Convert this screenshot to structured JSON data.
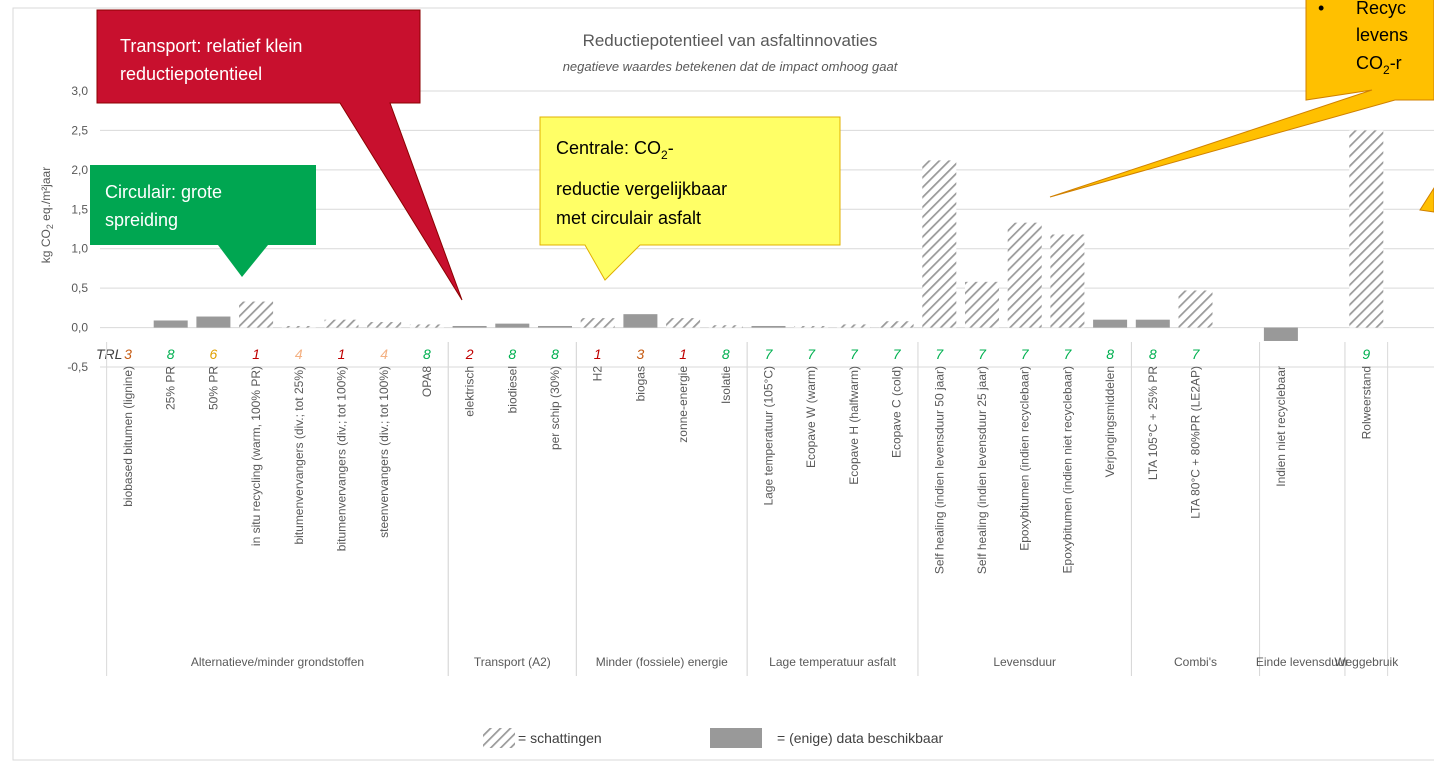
{
  "chart_data": {
    "type": "bar",
    "title": "Reductiepotentieel van asfaltinnovaties",
    "subtitle": "negatieve waardes betekenen dat de impact omhoog gaat",
    "y_label": [
      "kg CO",
      "2",
      " eq./m²jaar"
    ],
    "ylim": [
      -0.5,
      3.0
    ],
    "yticks": [
      {
        "value": -0.5,
        "label": "-0,5"
      },
      {
        "value": 0,
        "label": "0,0"
      },
      {
        "value": 0.5,
        "label": "0,5"
      },
      {
        "value": 1.0,
        "label": "1,0"
      },
      {
        "value": 1.5,
        "label": "1,5"
      },
      {
        "value": 2.0,
        "label": "2,0"
      },
      {
        "value": 2.5,
        "label": "2,5"
      },
      {
        "value": 3.0,
        "label": "3,0"
      }
    ],
    "grid": true,
    "categories": [
      "biobased bitumen (lignine)",
      "25% PR",
      "50% PR",
      "in situ recycling (warm, 100% PR)",
      "bitumenvervangers (div.; tot 25%)",
      "bitumenvervangers (div.; tot 100%)",
      "steenvervangers (div.; tot 100%)",
      "OPA8",
      "elektrisch",
      "biodiesel",
      "per schip (30%)",
      "H2",
      "biogas",
      "zonne-energie",
      "Isolatie",
      "Lage temperatuur (105°C)",
      "Ecopave W (warm)",
      "Ecopave H (halfwarm)",
      "Ecopave C (cold)",
      "Self healing (indien levensduur 50 jaar)",
      "Self healing (indien levensduur 25 jaar)",
      "Epoxybitumen (indien recyclebaar)",
      "Epoxybitumen (indien niet recyclebaar)",
      "Verjongingsmiddelen",
      "LTA 105°C + 25% PR",
      "LTA 80°C + 80%PR (LE2AP)",
      null,
      "Indien niet recyclebaar",
      null,
      "Rolweerstand"
    ],
    "values": [
      0,
      0.09,
      0.14,
      0.33,
      0.02,
      0.1,
      0.07,
      0.04,
      0.02,
      0.05,
      0.02,
      0.12,
      0.17,
      0.12,
      0.03,
      0.02,
      0.02,
      0.04,
      0.08,
      2.12,
      0.58,
      1.33,
      1.18,
      0.1,
      0.1,
      0.47,
      null,
      -0.17,
      null,
      2.5
    ],
    "patterns": [
      "hatched",
      "solid",
      "solid",
      "hatched",
      "hatched",
      "hatched",
      "hatched",
      "hatched",
      "solid",
      "solid",
      "solid",
      "hatched",
      "solid",
      "hatched",
      "hatched",
      "solid",
      "hatched",
      "hatched",
      "hatched",
      "hatched",
      "hatched",
      "hatched",
      "hatched",
      "solid",
      "solid",
      "hatched",
      null,
      "solid",
      null,
      "hatched"
    ],
    "trl_label": "TRL",
    "trl": [
      3,
      8,
      6,
      1,
      4,
      1,
      4,
      8,
      2,
      8,
      8,
      1,
      3,
      1,
      8,
      7,
      7,
      7,
      7,
      7,
      7,
      7,
      7,
      8,
      8,
      7,
      null,
      null,
      null,
      9
    ],
    "trl_colors": {
      "1": "#c00000",
      "2": "#c00000",
      "3": "#c55a11",
      "4": "#f4b183",
      "6": "#e0a000",
      "7": "#00b050",
      "8": "#00b050",
      "9": "#00b050"
    },
    "groups": [
      {
        "name": "Alternatieve/minder grondstoffen",
        "start": 0,
        "count": 8
      },
      {
        "name": "Transport (A2)",
        "start": 8,
        "count": 3
      },
      {
        "name": "Minder (fossiele) energie",
        "start": 11,
        "count": 4
      },
      {
        "name": "Lage temperatuur asfalt",
        "start": 15,
        "count": 4
      },
      {
        "name": "Levensduur",
        "start": 19,
        "count": 5
      },
      {
        "name": "Combi's",
        "start": 24,
        "count": 3
      },
      {
        "name": "Einde levensduur",
        "start": 27,
        "count": 2
      },
      {
        "name": "Weggebruik",
        "start": 29,
        "count": 1
      }
    ],
    "legend": {
      "hatched": "= schattingen",
      "solid": "= (enige) data beschikbaar"
    },
    "colors": {
      "solid": "#999999",
      "hatched": "#9a9a9a"
    }
  },
  "callouts": {
    "transport": [
      "Transport: relatief klein",
      "reductiepotentieel"
    ],
    "circulair": [
      "Circulair: grote",
      "spreiding"
    ],
    "centrale": [
      "Centrale: CO",
      "2",
      "-",
      "reductie vergelijkbaar",
      "met circulair asfalt"
    ],
    "recycling": [
      "•",
      "Recyc",
      "levens",
      "CO",
      "2",
      "-r"
    ]
  }
}
